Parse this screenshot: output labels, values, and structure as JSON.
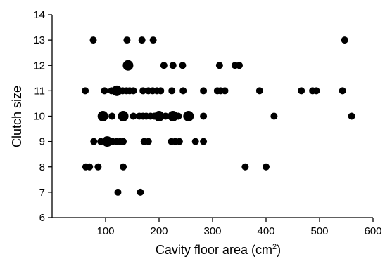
{
  "chart_data": {
    "type": "scatter",
    "xlabel": "Cavity floor area (cm",
    "xlabel_unit_sup": "2",
    "xlabel_close": ")",
    "ylabel": "Clutch size",
    "xlim": [
      0,
      600
    ],
    "ylim": [
      6,
      14
    ],
    "x_ticks": [
      100,
      200,
      300,
      400,
      500,
      600
    ],
    "y_ticks": [
      6,
      7,
      8,
      9,
      10,
      11,
      12,
      13,
      14
    ],
    "grid": false,
    "marker_color": "#000000",
    "note": "larger markers indicate multiple overlapping observations",
    "points": [
      {
        "x": 77,
        "y": 13,
        "n": 1
      },
      {
        "x": 140,
        "y": 13,
        "n": 1
      },
      {
        "x": 168,
        "y": 13,
        "n": 1
      },
      {
        "x": 189,
        "y": 13,
        "n": 1
      },
      {
        "x": 547,
        "y": 13,
        "n": 1
      },
      {
        "x": 142,
        "y": 12,
        "n": 3
      },
      {
        "x": 209,
        "y": 12,
        "n": 1
      },
      {
        "x": 226,
        "y": 12,
        "n": 1
      },
      {
        "x": 244,
        "y": 12,
        "n": 1
      },
      {
        "x": 313,
        "y": 12,
        "n": 1
      },
      {
        "x": 342,
        "y": 12,
        "n": 1
      },
      {
        "x": 350,
        "y": 12,
        "n": 1
      },
      {
        "x": 62,
        "y": 11,
        "n": 1
      },
      {
        "x": 98,
        "y": 11,
        "n": 1
      },
      {
        "x": 111,
        "y": 11,
        "n": 1
      },
      {
        "x": 121,
        "y": 11,
        "n": 3
      },
      {
        "x": 132,
        "y": 11,
        "n": 1
      },
      {
        "x": 139,
        "y": 11,
        "n": 1
      },
      {
        "x": 145,
        "y": 11,
        "n": 1
      },
      {
        "x": 152,
        "y": 11,
        "n": 1
      },
      {
        "x": 170,
        "y": 11,
        "n": 1
      },
      {
        "x": 180,
        "y": 11,
        "n": 1
      },
      {
        "x": 188,
        "y": 11,
        "n": 1
      },
      {
        "x": 196,
        "y": 11,
        "n": 1
      },
      {
        "x": 203,
        "y": 11,
        "n": 1
      },
      {
        "x": 224,
        "y": 11,
        "n": 1
      },
      {
        "x": 245,
        "y": 11,
        "n": 1
      },
      {
        "x": 283,
        "y": 11,
        "n": 1
      },
      {
        "x": 309,
        "y": 11,
        "n": 1
      },
      {
        "x": 315,
        "y": 11,
        "n": 1
      },
      {
        "x": 323,
        "y": 11,
        "n": 1
      },
      {
        "x": 388,
        "y": 11,
        "n": 1
      },
      {
        "x": 466,
        "y": 11,
        "n": 1
      },
      {
        "x": 487,
        "y": 11,
        "n": 1
      },
      {
        "x": 494,
        "y": 11,
        "n": 1
      },
      {
        "x": 543,
        "y": 11,
        "n": 1
      },
      {
        "x": 95,
        "y": 10,
        "n": 3
      },
      {
        "x": 112,
        "y": 10,
        "n": 1
      },
      {
        "x": 133,
        "y": 10,
        "n": 3
      },
      {
        "x": 152,
        "y": 10,
        "n": 1
      },
      {
        "x": 163,
        "y": 10,
        "n": 1
      },
      {
        "x": 170,
        "y": 10,
        "n": 1
      },
      {
        "x": 176,
        "y": 10,
        "n": 1
      },
      {
        "x": 184,
        "y": 10,
        "n": 1
      },
      {
        "x": 191,
        "y": 10,
        "n": 1
      },
      {
        "x": 200,
        "y": 10,
        "n": 3
      },
      {
        "x": 212,
        "y": 10,
        "n": 1
      },
      {
        "x": 226,
        "y": 10,
        "n": 3
      },
      {
        "x": 236,
        "y": 10,
        "n": 1
      },
      {
        "x": 255,
        "y": 10,
        "n": 3
      },
      {
        "x": 283,
        "y": 10,
        "n": 1
      },
      {
        "x": 415,
        "y": 10,
        "n": 1
      },
      {
        "x": 560,
        "y": 10,
        "n": 1
      },
      {
        "x": 78,
        "y": 9,
        "n": 1
      },
      {
        "x": 91,
        "y": 9,
        "n": 1
      },
      {
        "x": 98,
        "y": 9,
        "n": 1
      },
      {
        "x": 103,
        "y": 9,
        "n": 3
      },
      {
        "x": 113,
        "y": 9,
        "n": 1
      },
      {
        "x": 120,
        "y": 9,
        "n": 1
      },
      {
        "x": 127,
        "y": 9,
        "n": 1
      },
      {
        "x": 133,
        "y": 9,
        "n": 1
      },
      {
        "x": 172,
        "y": 9,
        "n": 1
      },
      {
        "x": 180,
        "y": 9,
        "n": 1
      },
      {
        "x": 223,
        "y": 9,
        "n": 1
      },
      {
        "x": 230,
        "y": 9,
        "n": 1
      },
      {
        "x": 238,
        "y": 9,
        "n": 1
      },
      {
        "x": 268,
        "y": 9,
        "n": 1
      },
      {
        "x": 283,
        "y": 9,
        "n": 1
      },
      {
        "x": 63,
        "y": 8,
        "n": 1
      },
      {
        "x": 70,
        "y": 8,
        "n": 1
      },
      {
        "x": 86,
        "y": 8,
        "n": 1
      },
      {
        "x": 133,
        "y": 8,
        "n": 1
      },
      {
        "x": 361,
        "y": 8,
        "n": 1
      },
      {
        "x": 400,
        "y": 8,
        "n": 1
      },
      {
        "x": 123,
        "y": 7,
        "n": 1
      },
      {
        "x": 165,
        "y": 7,
        "n": 1
      }
    ]
  }
}
